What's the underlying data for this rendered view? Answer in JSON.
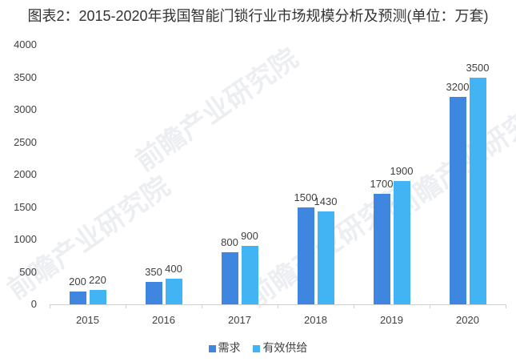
{
  "title": "图表2：2015-2020年我国智能门锁行业市场规模分析及预测(单位：万套)",
  "watermark": "前瞻产业研究院",
  "colors": {
    "demand": "#3f86e0",
    "supply": "#42b4f4",
    "axis": "#d0d0d0"
  },
  "y_ticks": [
    "4000",
    "3500",
    "3000",
    "2500",
    "2000",
    "1500",
    "1000",
    "500",
    "0"
  ],
  "legend": [
    {
      "label": "需求",
      "color": "#3f86e0"
    },
    {
      "label": "有效供给",
      "color": "#42b4f4"
    }
  ],
  "chart_data": {
    "type": "bar",
    "title": "图表2：2015-2020年我国智能门锁行业市场规模分析及预测(单位：万套)",
    "categories": [
      "2015",
      "2016",
      "2017",
      "2018",
      "2019",
      "2020"
    ],
    "series": [
      {
        "name": "需求",
        "values": [
          200,
          350,
          800,
          1500,
          1700,
          3200
        ]
      },
      {
        "name": "有效供给",
        "values": [
          220,
          400,
          900,
          1430,
          1900,
          3500
        ]
      }
    ],
    "xlabel": "",
    "ylabel": "",
    "ylim": [
      0,
      4000
    ],
    "yticks": [
      0,
      500,
      1000,
      1500,
      2000,
      2500,
      3000,
      3500,
      4000
    ],
    "grid": false,
    "legend_position": "bottom",
    "unit": "万套"
  }
}
